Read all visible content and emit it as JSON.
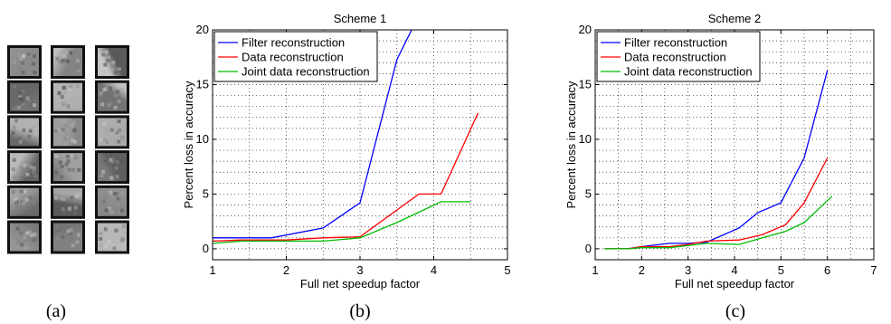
{
  "panel_labels": [
    "(a)",
    "(b)",
    "(c)"
  ],
  "filters_panel": {
    "columns": 3,
    "rows": 6
  },
  "chart_data": [
    {
      "type": "line",
      "title": "Scheme 1",
      "xlabel": "Full net speedup factor",
      "ylabel": "Percent loss in accuracy",
      "xlim": [
        1,
        5
      ],
      "ylim": [
        -1,
        20
      ],
      "xticks": [
        1,
        2,
        3,
        4,
        5
      ],
      "yticks": [
        0,
        5,
        10,
        15,
        20
      ],
      "grid": true,
      "legend_position": "top-left",
      "series": [
        {
          "name": "Filter reconstruction",
          "color": "#0000ff",
          "x": [
            1.0,
            1.4,
            1.8,
            2.5,
            3.0,
            3.5,
            3.7
          ],
          "y": [
            1.0,
            1.0,
            1.0,
            1.9,
            4.2,
            17.3,
            20.0
          ]
        },
        {
          "name": "Data reconstruction",
          "color": "#ff0000",
          "x": [
            1.0,
            1.4,
            2.0,
            2.5,
            3.0,
            3.8,
            4.1,
            4.6
          ],
          "y": [
            0.7,
            0.8,
            0.8,
            1.0,
            1.1,
            5.0,
            5.0,
            12.4
          ]
        },
        {
          "name": "Joint data reconstruction",
          "color": "#00bb00",
          "x": [
            1.0,
            1.4,
            2.0,
            2.5,
            3.0,
            3.5,
            4.1,
            4.5
          ],
          "y": [
            0.5,
            0.7,
            0.7,
            0.7,
            1.0,
            2.4,
            4.3,
            4.3
          ]
        }
      ]
    },
    {
      "type": "line",
      "title": "Scheme 2",
      "xlabel": "Full net speedup factor",
      "ylabel": "Percent loss in accuracy",
      "xlim": [
        1,
        7
      ],
      "ylim": [
        -1,
        20
      ],
      "xticks": [
        1,
        2,
        3,
        4,
        5,
        6,
        7
      ],
      "yticks": [
        0,
        5,
        10,
        15,
        20
      ],
      "grid": true,
      "legend_position": "top-left",
      "series": [
        {
          "name": "Filter reconstruction",
          "color": "#0000ff",
          "x": [
            1.2,
            1.7,
            2.0,
            2.6,
            3.0,
            3.4,
            4.1,
            4.5,
            5.0,
            5.5,
            6.0
          ],
          "y": [
            0.0,
            0.0,
            0.2,
            0.5,
            0.5,
            0.6,
            1.9,
            3.3,
            4.2,
            8.3,
            16.3
          ]
        },
        {
          "name": "Data reconstruction",
          "color": "#ff0000",
          "x": [
            1.2,
            1.7,
            2.0,
            2.6,
            3.0,
            3.4,
            4.1,
            4.6,
            5.1,
            5.5,
            6.0
          ],
          "y": [
            0.0,
            0.0,
            0.2,
            0.2,
            0.4,
            0.7,
            0.8,
            1.3,
            2.2,
            4.2,
            8.3
          ]
        },
        {
          "name": "Joint data reconstruction",
          "color": "#00bb00",
          "x": [
            1.2,
            1.7,
            2.0,
            2.6,
            3.0,
            3.4,
            4.1,
            4.6,
            5.1,
            5.5,
            6.1
          ],
          "y": [
            0.0,
            0.0,
            0.1,
            0.1,
            0.3,
            0.5,
            0.4,
            1.0,
            1.6,
            2.4,
            4.8
          ]
        }
      ]
    }
  ]
}
